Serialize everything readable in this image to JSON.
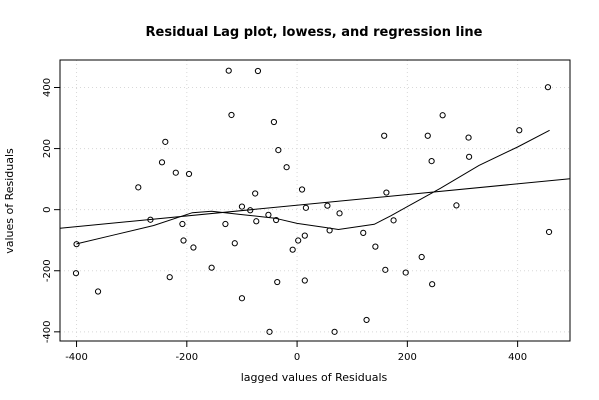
{
  "chart_data": {
    "type": "scatter",
    "title": "Residual Lag plot, lowess, and regression line",
    "xlabel": "lagged values of Residuals",
    "ylabel": "values of Residuals",
    "xlim": [
      -430,
      495
    ],
    "ylim": [
      -430,
      490
    ],
    "xticks": [
      -400,
      -200,
      0,
      200,
      400
    ],
    "yticks": [
      -400,
      -200,
      0,
      200,
      400
    ],
    "grid": true,
    "points": [
      [
        -400,
        -113
      ],
      [
        -401,
        -208
      ],
      [
        -361,
        -268
      ],
      [
        -288,
        73
      ],
      [
        -266,
        -33
      ],
      [
        -245,
        155
      ],
      [
        -239,
        222
      ],
      [
        -231,
        -221
      ],
      [
        -220,
        121
      ],
      [
        -208,
        -47
      ],
      [
        -206,
        -101
      ],
      [
        -196,
        117
      ],
      [
        -188,
        -124
      ],
      [
        -155,
        -190
      ],
      [
        -130,
        -47
      ],
      [
        -124,
        455
      ],
      [
        -119,
        310
      ],
      [
        -113,
        -110
      ],
      [
        -100,
        10
      ],
      [
        -100,
        -290
      ],
      [
        -85,
        -2
      ],
      [
        -76,
        53
      ],
      [
        -74,
        -38
      ],
      [
        -71,
        454
      ],
      [
        -52,
        -17
      ],
      [
        -50,
        -400
      ],
      [
        -42,
        287
      ],
      [
        -38,
        -34
      ],
      [
        -36,
        -237
      ],
      [
        -34,
        195
      ],
      [
        -19,
        139
      ],
      [
        -8,
        -131
      ],
      [
        2,
        -101
      ],
      [
        9,
        66
      ],
      [
        14,
        -85
      ],
      [
        14,
        -232
      ],
      [
        16,
        6
      ],
      [
        55,
        13
      ],
      [
        59,
        -68
      ],
      [
        68,
        -400
      ],
      [
        77,
        -12
      ],
      [
        120,
        -76
      ],
      [
        126,
        -361
      ],
      [
        142,
        -121
      ],
      [
        158,
        242
      ],
      [
        160,
        -197
      ],
      [
        162,
        56
      ],
      [
        175,
        -35
      ],
      [
        197,
        -206
      ],
      [
        226,
        -155
      ],
      [
        237,
        242
      ],
      [
        244,
        159
      ],
      [
        245,
        -244
      ],
      [
        264,
        309
      ],
      [
        289,
        14
      ],
      [
        311,
        236
      ],
      [
        312,
        173
      ],
      [
        403,
        260
      ],
      [
        455,
        401
      ],
      [
        457,
        -73
      ]
    ],
    "lowess": [
      [
        -400,
        -112
      ],
      [
        -330,
        -82
      ],
      [
        -260,
        -52
      ],
      [
        -190,
        -10
      ],
      [
        -155,
        -5
      ],
      [
        -100,
        -16
      ],
      [
        -40,
        -28
      ],
      [
        0,
        -45
      ],
      [
        50,
        -58
      ],
      [
        75,
        -65
      ],
      [
        140,
        -48
      ],
      [
        170,
        -20
      ],
      [
        200,
        10
      ],
      [
        260,
        70
      ],
      [
        330,
        145
      ],
      [
        400,
        205
      ],
      [
        458,
        260
      ]
    ],
    "regression": {
      "intercept": 14.5,
      "slope": 0.175,
      "x_range": [
        -430,
        495
      ]
    }
  }
}
